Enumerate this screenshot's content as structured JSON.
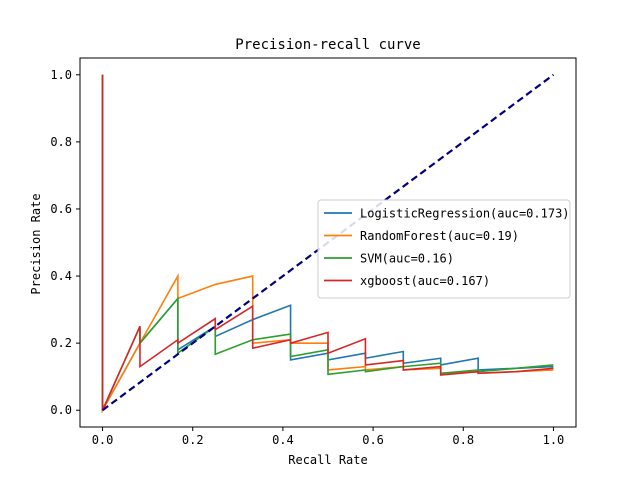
{
  "chart_data": {
    "type": "line",
    "title": "Precision-recall curve",
    "xlabel": "Recall Rate",
    "ylabel": "Precision Rate",
    "xlim": [
      -0.05,
      1.05
    ],
    "ylim": [
      -0.05,
      1.05
    ],
    "xticks": [
      0.0,
      0.2,
      0.4,
      0.6,
      0.8,
      1.0
    ],
    "xtick_labels": [
      "0.0",
      "0.2",
      "0.4",
      "0.6",
      "0.8",
      "1.0"
    ],
    "yticks": [
      0.0,
      0.2,
      0.4,
      0.6,
      0.8,
      1.0
    ],
    "ytick_labels": [
      "0.0",
      "0.2",
      "0.4",
      "0.6",
      "0.8",
      "1.0"
    ],
    "grid": false,
    "legend_position": "center-right",
    "series": [
      {
        "name": "LogisticRegression(auc=0.173)",
        "color": "#1f77b4",
        "x": [
          0.0,
          0.0,
          0.0,
          0.083,
          0.083,
          0.167,
          0.167,
          0.25,
          0.25,
          0.333,
          0.333,
          0.417,
          0.417,
          0.5,
          0.5,
          0.583,
          0.583,
          0.667,
          0.667,
          0.75,
          0.75,
          0.833,
          0.833,
          0.917,
          1.0
        ],
        "y": [
          0.0,
          1.0,
          0.0,
          0.2,
          0.2,
          0.333,
          0.18,
          0.25,
          0.22,
          0.27,
          0.27,
          0.313,
          0.15,
          0.17,
          0.15,
          0.17,
          0.155,
          0.175,
          0.14,
          0.155,
          0.135,
          0.155,
          0.12,
          0.125,
          0.13
        ]
      },
      {
        "name": "RandomForest(auc=0.19)",
        "color": "#ff7f0e",
        "x": [
          0.0,
          0.0,
          0.0,
          0.083,
          0.083,
          0.167,
          0.167,
          0.25,
          0.333,
          0.333,
          0.417,
          0.417,
          0.5,
          0.5,
          0.583,
          0.583,
          0.667,
          0.667,
          0.75,
          0.75,
          0.833,
          0.833,
          1.0
        ],
        "y": [
          0.0,
          1.0,
          0.0,
          0.2,
          0.2,
          0.4,
          0.333,
          0.375,
          0.4,
          0.2,
          0.21,
          0.2,
          0.2,
          0.12,
          0.13,
          0.12,
          0.13,
          0.12,
          0.125,
          0.11,
          0.115,
          0.11,
          0.12
        ]
      },
      {
        "name": "SVM(auc=0.16)",
        "color": "#2ca02c",
        "x": [
          0.0,
          0.0,
          0.0,
          0.083,
          0.083,
          0.167,
          0.167,
          0.25,
          0.25,
          0.333,
          0.333,
          0.417,
          0.417,
          0.5,
          0.5,
          0.583,
          0.583,
          0.667,
          0.667,
          0.75,
          0.75,
          0.833,
          0.833,
          0.917,
          1.0
        ],
        "y": [
          0.0,
          1.0,
          0.0,
          0.25,
          0.2,
          0.333,
          0.17,
          0.25,
          0.167,
          0.21,
          0.21,
          0.227,
          0.16,
          0.18,
          0.107,
          0.12,
          0.115,
          0.13,
          0.13,
          0.14,
          0.11,
          0.12,
          0.115,
          0.125,
          0.135
        ]
      },
      {
        "name": "xgboost(auc=0.167)",
        "color": "#d62728",
        "x": [
          0.0,
          0.0,
          0.0,
          0.083,
          0.083,
          0.167,
          0.167,
          0.25,
          0.25,
          0.333,
          0.333,
          0.417,
          0.417,
          0.5,
          0.5,
          0.583,
          0.583,
          0.667,
          0.667,
          0.75,
          0.75,
          0.833,
          0.833,
          0.917,
          1.0
        ],
        "y": [
          0.0,
          1.0,
          0.0,
          0.25,
          0.13,
          0.21,
          0.2,
          0.273,
          0.24,
          0.31,
          0.185,
          0.21,
          0.2,
          0.232,
          0.17,
          0.213,
          0.135,
          0.148,
          0.12,
          0.13,
          0.105,
          0.115,
          0.11,
          0.115,
          0.125
        ]
      }
    ],
    "reference_line": {
      "style": "dashed",
      "color": "#000080",
      "x": [
        0.0,
        1.0
      ],
      "y": [
        0.0,
        1.0
      ]
    }
  }
}
